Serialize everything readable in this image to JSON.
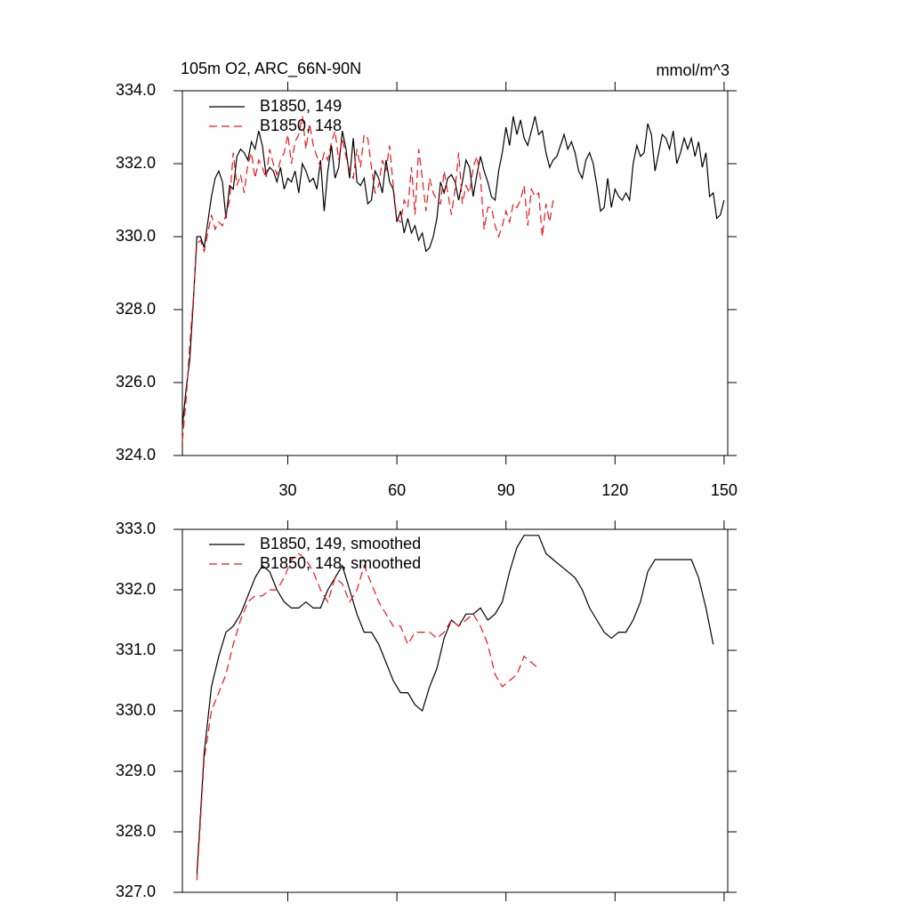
{
  "chart_data": [
    {
      "type": "line",
      "title": "105m O2, ARC_66N-90N",
      "units_label": "mmol/m^3",
      "xlim": [
        1,
        151
      ],
      "ylim": [
        324,
        334
      ],
      "xticks": [
        30,
        60,
        90,
        120,
        150
      ],
      "yticks": [
        {
          "value": 324,
          "label": "324.0"
        },
        {
          "value": 326,
          "label": "326.0"
        },
        {
          "value": 328,
          "label": "328.0"
        },
        {
          "value": 330,
          "label": "330.0"
        },
        {
          "value": 332,
          "label": "332.0"
        },
        {
          "value": 334,
          "label": "334.0"
        }
      ],
      "series": [
        {
          "name": "B1850, 149",
          "color": "#000000",
          "dash": false,
          "x": [
            1,
            2,
            3,
            4,
            5,
            6,
            7,
            8,
            9,
            10,
            11,
            12,
            13,
            14,
            15,
            16,
            17,
            18,
            19,
            20,
            21,
            22,
            23,
            24,
            25,
            26,
            27,
            28,
            29,
            30,
            31,
            32,
            33,
            34,
            35,
            36,
            37,
            38,
            39,
            40,
            41,
            42,
            43,
            44,
            45,
            46,
            47,
            48,
            49,
            50,
            51,
            52,
            53,
            54,
            55,
            56,
            57,
            58,
            59,
            60,
            61,
            62,
            63,
            64,
            65,
            66,
            67,
            68,
            69,
            70,
            71,
            72,
            73,
            74,
            75,
            76,
            77,
            78,
            79,
            80,
            81,
            82,
            83,
            84,
            85,
            86,
            87,
            88,
            89,
            90,
            91,
            92,
            93,
            94,
            95,
            96,
            97,
            98,
            99,
            100,
            101,
            102,
            103,
            104,
            105,
            106,
            107,
            108,
            109,
            110,
            111,
            112,
            113,
            114,
            115,
            116,
            117,
            118,
            119,
            120,
            121,
            122,
            123,
            124,
            125,
            126,
            127,
            128,
            129,
            130,
            131,
            132,
            133,
            134,
            135,
            136,
            137,
            138,
            139,
            140,
            141,
            142,
            143,
            144,
            145,
            146,
            147,
            148,
            149,
            150
          ],
          "values": [
            324.8,
            325.8,
            326.6,
            328.2,
            330.0,
            330.0,
            329.7,
            330.4,
            331.1,
            331.6,
            331.8,
            331.5,
            330.5,
            331.4,
            331.3,
            332.2,
            332.4,
            332.3,
            332.1,
            332.6,
            332.4,
            332.9,
            332.5,
            331.7,
            331.9,
            331.8,
            331.5,
            331.9,
            331.3,
            331.6,
            331.5,
            331.8,
            331.2,
            332.0,
            331.8,
            331.5,
            331.6,
            331.3,
            332.1,
            330.7,
            331.8,
            332.5,
            331.6,
            331.9,
            332.9,
            332.4,
            331.6,
            332.7,
            331.5,
            331.4,
            331.6,
            330.9,
            331.0,
            331.8,
            331.6,
            331.2,
            332.1,
            331.5,
            331.3,
            330.4,
            330.7,
            330.1,
            330.5,
            330.1,
            330.3,
            329.9,
            330.1,
            329.6,
            329.7,
            330.0,
            330.5,
            331.5,
            331.2,
            331.6,
            331.7,
            331.5,
            331.0,
            331.5,
            332.1,
            331.9,
            331.1,
            331.7,
            332.2,
            331.8,
            331.5,
            331.1,
            331.0,
            331.8,
            332.3,
            333.0,
            332.5,
            333.3,
            332.8,
            333.2,
            332.7,
            332.5,
            332.9,
            333.3,
            332.8,
            332.9,
            332.3,
            331.9,
            332.1,
            332.2,
            332.5,
            332.8,
            332.4,
            332.6,
            332.3,
            331.8,
            331.6,
            332.1,
            332.3,
            332.0,
            331.4,
            330.7,
            330.8,
            331.6,
            330.8,
            331.3,
            331.1,
            331.0,
            331.2,
            331.0,
            332.0,
            332.5,
            332.2,
            332.3,
            333.1,
            332.8,
            331.8,
            332.3,
            332.8,
            332.7,
            332.4,
            332.9,
            332.0,
            332.3,
            332.7,
            332.4,
            332.7,
            332.2,
            332.6,
            331.9,
            332.3,
            331.1,
            331.2,
            330.5,
            330.6,
            331.0
          ]
        },
        {
          "name": "B1850, 148",
          "color": "#e8161b",
          "dash": true,
          "x": [
            1,
            2,
            3,
            4,
            5,
            6,
            7,
            8,
            9,
            10,
            11,
            12,
            13,
            14,
            15,
            16,
            17,
            18,
            19,
            20,
            21,
            22,
            23,
            24,
            25,
            26,
            27,
            28,
            29,
            30,
            31,
            32,
            33,
            34,
            35,
            36,
            37,
            38,
            39,
            40,
            41,
            42,
            43,
            44,
            45,
            46,
            47,
            48,
            49,
            50,
            51,
            52,
            53,
            54,
            55,
            56,
            57,
            58,
            59,
            60,
            61,
            62,
            63,
            64,
            65,
            66,
            67,
            68,
            69,
            70,
            71,
            72,
            73,
            74,
            75,
            76,
            77,
            78,
            79,
            80,
            81,
            82,
            83,
            84,
            85,
            86,
            87,
            88,
            89,
            90,
            91,
            92,
            93,
            94,
            95,
            96,
            97,
            98,
            99,
            100,
            101,
            102,
            103
          ],
          "values": [
            324.4,
            325.5,
            327.0,
            328.3,
            329.8,
            329.9,
            329.6,
            330.1,
            330.6,
            330.2,
            330.4,
            330.3,
            330.6,
            331.0,
            332.3,
            331.4,
            331.7,
            331.2,
            332.0,
            332.3,
            331.6,
            332.1,
            331.9,
            331.6,
            332.4,
            332.0,
            331.7,
            332.1,
            332.3,
            332.8,
            332.0,
            332.6,
            332.8,
            333.3,
            332.4,
            333.1,
            332.5,
            332.2,
            331.9,
            332.3,
            332.1,
            332.6,
            332.9,
            332.1,
            332.7,
            332.2,
            331.8,
            331.6,
            332.4,
            331.9,
            332.8,
            332.7,
            331.9,
            331.2,
            331.4,
            332.1,
            331.8,
            332.5,
            331.4,
            330.5,
            330.4,
            331.0,
            330.8,
            331.9,
            330.6,
            332.4,
            331.6,
            330.7,
            331.6,
            331.2,
            331.0,
            330.9,
            331.8,
            331.2,
            330.6,
            331.3,
            332.3,
            330.9,
            331.4,
            331.2,
            331.9,
            332.2,
            331.6,
            330.2,
            330.8,
            330.8,
            330.3,
            330.0,
            330.3,
            330.7,
            330.4,
            330.9,
            330.8,
            331.0,
            331.4,
            330.3,
            331.3,
            331.1,
            331.2,
            330.0,
            330.9,
            330.4,
            331.0
          ]
        }
      ]
    },
    {
      "type": "line",
      "xlim": [
        1,
        151
      ],
      "ylim": [
        327,
        333
      ],
      "xticks": [
        30,
        60,
        90,
        120,
        150
      ],
      "yticks": [
        {
          "value": 327,
          "label": "327.0"
        },
        {
          "value": 328,
          "label": "328.0"
        },
        {
          "value": 329,
          "label": "329.0"
        },
        {
          "value": 330,
          "label": "330.0"
        },
        {
          "value": 331,
          "label": "331.0"
        },
        {
          "value": 332,
          "label": "332.0"
        },
        {
          "value": 333,
          "label": "333.0"
        }
      ],
      "series": [
        {
          "name": "B1850, 149, smoothed",
          "color": "#000000",
          "dash": false,
          "x": [
            5,
            7,
            9,
            11,
            13,
            15,
            17,
            19,
            21,
            23,
            25,
            27,
            29,
            31,
            33,
            35,
            37,
            39,
            41,
            43,
            45,
            47,
            49,
            51,
            53,
            55,
            57,
            59,
            61,
            63,
            65,
            67,
            69,
            71,
            73,
            75,
            77,
            79,
            81,
            83,
            85,
            87,
            89,
            91,
            93,
            95,
            97,
            99,
            101,
            103,
            105,
            107,
            109,
            111,
            113,
            115,
            117,
            119,
            121,
            123,
            125,
            127,
            129,
            131,
            133,
            135,
            137,
            139,
            141,
            143,
            145,
            147
          ],
          "values": [
            327.3,
            329.3,
            330.4,
            330.9,
            331.3,
            331.4,
            331.6,
            331.9,
            332.2,
            332.4,
            332.3,
            332.0,
            331.8,
            331.7,
            331.7,
            331.8,
            331.7,
            331.7,
            332.0,
            332.2,
            332.4,
            332.0,
            331.6,
            331.3,
            331.3,
            331.1,
            330.8,
            330.5,
            330.3,
            330.3,
            330.1,
            330.0,
            330.4,
            330.7,
            331.2,
            331.5,
            331.4,
            331.6,
            331.6,
            331.7,
            331.5,
            331.6,
            331.8,
            332.3,
            332.7,
            332.9,
            332.9,
            332.9,
            332.6,
            332.5,
            332.4,
            332.3,
            332.2,
            332.0,
            331.7,
            331.5,
            331.3,
            331.2,
            331.3,
            331.3,
            331.5,
            331.8,
            332.3,
            332.5,
            332.5,
            332.5,
            332.5,
            332.5,
            332.5,
            332.2,
            331.7,
            331.1
          ]
        },
        {
          "name": "B1850, 148, smoothed",
          "color": "#e8161b",
          "dash": true,
          "x": [
            5,
            7,
            9,
            11,
            13,
            15,
            17,
            19,
            21,
            23,
            25,
            27,
            29,
            31,
            33,
            35,
            37,
            39,
            41,
            43,
            45,
            47,
            49,
            51,
            53,
            55,
            57,
            59,
            61,
            63,
            65,
            67,
            69,
            71,
            73,
            75,
            77,
            79,
            81,
            83,
            85,
            87,
            89,
            91,
            93,
            95,
            97,
            99
          ],
          "values": [
            327.2,
            329.2,
            330.0,
            330.3,
            330.6,
            331.1,
            331.5,
            331.8,
            331.9,
            331.9,
            332.0,
            332.0,
            332.2,
            332.5,
            332.6,
            332.5,
            332.3,
            332.0,
            331.8,
            332.2,
            332.1,
            331.8,
            332.0,
            332.4,
            332.1,
            331.8,
            331.6,
            331.4,
            331.4,
            331.1,
            331.3,
            331.3,
            331.3,
            331.2,
            331.3,
            331.5,
            331.4,
            331.5,
            331.6,
            331.4,
            331.1,
            330.6,
            330.4,
            330.5,
            330.6,
            330.9,
            330.8,
            330.7
          ]
        }
      ]
    }
  ]
}
